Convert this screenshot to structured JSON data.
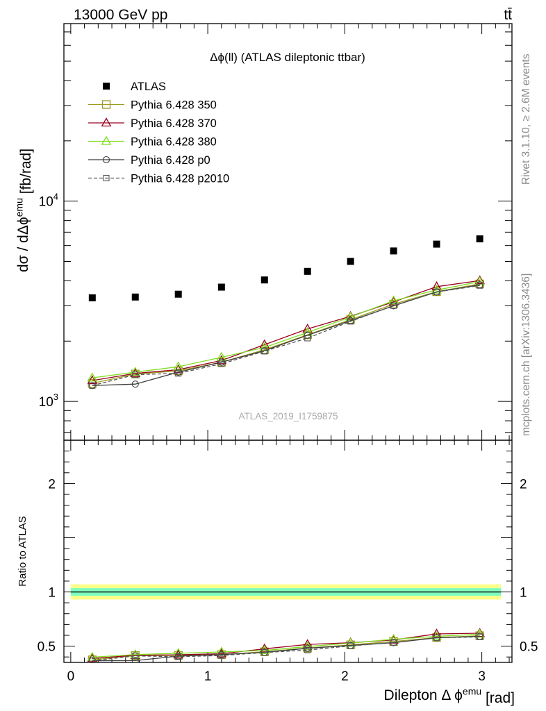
{
  "header": {
    "energy_label": "13000 GeV pp",
    "process_label": "tt̄"
  },
  "side_labels": {
    "rivet": "Rivet 3.1.10, ≥ 2.6M events",
    "mcplots": "mcplots.cern.ch [arXiv:1306.3436]"
  },
  "chart_data": [
    {
      "type": "scatter",
      "panel": "main",
      "title": "Δϕ(ll) (ATLAS dileptonic ttbar)",
      "ylabel": "dσ / dΔϕ^emu [fb/rad]",
      "watermark": "ATLAS_2019_I1759875",
      "y_scale": "log",
      "xlim": [
        -0.05,
        3.22
      ],
      "ylim": [
        640,
        77000
      ],
      "y_ticks": [
        {
          "value": 1000,
          "label": "10^3"
        },
        {
          "value": 10000,
          "label": "10^4"
        }
      ],
      "legend_position": "top-left",
      "x": [
        0.157,
        0.471,
        0.785,
        1.1,
        1.414,
        1.728,
        2.042,
        2.356,
        2.67,
        2.985
      ],
      "series": [
        {
          "name": "ATLAS",
          "color": "#000000",
          "marker": "square-filled",
          "line": "none",
          "values": [
            3290,
            3320,
            3430,
            3720,
            4040,
            4460,
            5000,
            5640,
            6100,
            6480
          ]
        },
        {
          "name": "Pythia 6.428 350",
          "color": "#9c9c1e",
          "marker": "square-open",
          "line": "solid",
          "values": [
            1230,
            1370,
            1420,
            1570,
            1810,
            2150,
            2560,
            3060,
            3530,
            3860
          ]
        },
        {
          "name": "Pythia 6.428 370",
          "color": "#990020",
          "marker": "triangle-open",
          "line": "solid",
          "values": [
            1270,
            1380,
            1440,
            1600,
            1920,
            2300,
            2660,
            3140,
            3740,
            4010
          ]
        },
        {
          "name": "Pythia 6.428 380",
          "color": "#7fdd20",
          "marker": "triangle-open",
          "line": "solid",
          "values": [
            1310,
            1400,
            1490,
            1660,
            1860,
            2210,
            2640,
            3180,
            3600,
            3960
          ]
        },
        {
          "name": "Pythia 6.428 p0",
          "color": "#3c3c3c",
          "marker": "circle-open",
          "line": "solid",
          "values": [
            1200,
            1220,
            1400,
            1570,
            1790,
            2140,
            2530,
            3000,
            3520,
            3820
          ]
        },
        {
          "name": "Pythia 6.428 p2010",
          "color": "#555555",
          "marker": "square-open-small",
          "line": "dashed",
          "values": [
            1200,
            1360,
            1380,
            1540,
            1780,
            2070,
            2510,
            3010,
            3520,
            3790
          ]
        }
      ]
    },
    {
      "type": "line",
      "panel": "ratio",
      "ylabel": "Ratio to ATLAS",
      "xlabel": "Dilepton Δ ϕ^emu [rad]",
      "xlim": [
        -0.05,
        3.22
      ],
      "ylim": [
        0.35,
        2.4
      ],
      "y_ticks": [
        0.5,
        1,
        2
      ],
      "x_ticks": [
        0,
        1,
        2,
        3
      ],
      "reference_line": 1,
      "uncertainty_band": {
        "inner": 0.035,
        "outer": 0.07,
        "inner_color": "#7fffbf",
        "outer_color": "#ffff88"
      },
      "x": [
        0.157,
        0.471,
        0.785,
        1.1,
        1.414,
        1.728,
        2.042,
        2.356,
        2.67,
        2.985
      ],
      "series": [
        {
          "name": "Pythia 6.428 350",
          "color": "#9c9c1e",
          "marker": "square-open",
          "line": "solid",
          "values": [
            0.374,
            0.413,
            0.414,
            0.422,
            0.448,
            0.482,
            0.512,
            0.543,
            0.579,
            0.596
          ]
        },
        {
          "name": "Pythia 6.428 370",
          "color": "#990020",
          "marker": "triangle-open",
          "line": "solid",
          "values": [
            0.386,
            0.416,
            0.42,
            0.43,
            0.475,
            0.516,
            0.532,
            0.557,
            0.613,
            0.619
          ]
        },
        {
          "name": "Pythia 6.428 380",
          "color": "#7fdd20",
          "marker": "triangle-open",
          "line": "solid",
          "values": [
            0.398,
            0.422,
            0.434,
            0.446,
            0.46,
            0.496,
            0.528,
            0.564,
            0.59,
            0.611
          ]
        },
        {
          "name": "Pythia 6.428 p0",
          "color": "#3c3c3c",
          "marker": "circle-open",
          "line": "solid",
          "values": [
            0.365,
            0.367,
            0.408,
            0.422,
            0.443,
            0.48,
            0.506,
            0.532,
            0.577,
            0.59
          ]
        },
        {
          "name": "Pythia 6.428 p2010",
          "color": "#555555",
          "marker": "square-open-small",
          "line": "dashed",
          "values": [
            0.365,
            0.41,
            0.402,
            0.414,
            0.441,
            0.464,
            0.502,
            0.534,
            0.577,
            0.585
          ]
        }
      ]
    }
  ]
}
